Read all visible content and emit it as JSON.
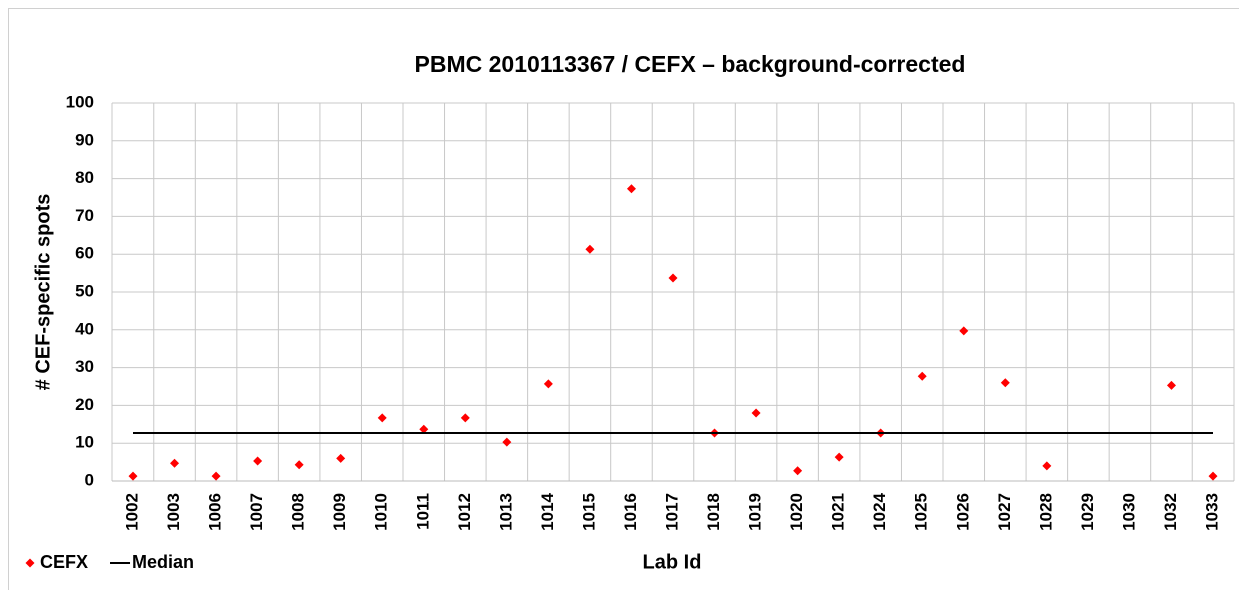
{
  "chart_data": {
    "type": "scatter",
    "title": "PBMC 2010113367 / CEFX – background-corrected",
    "x_label": "Lab Id",
    "y_label": "# CEF-specific spots",
    "categories": [
      "1002",
      "1003",
      "1006",
      "1007",
      "1008",
      "1009",
      "1010",
      "1011",
      "1012",
      "1013",
      "1014",
      "1015",
      "1016",
      "1017",
      "1018",
      "1019",
      "1020",
      "1021",
      "1024",
      "1025",
      "1026",
      "1027",
      "1028",
      "1029",
      "1030",
      "1032",
      "1033"
    ],
    "series": [
      {
        "name": "CEFX",
        "color": "#ff0000",
        "marker": "diamond",
        "values": [
          1.3,
          4.7,
          1.3,
          5.3,
          4.3,
          6,
          16.7,
          13.7,
          16.7,
          10.3,
          25.7,
          61.3,
          77.3,
          53.7,
          12.7,
          18,
          2.7,
          6.3,
          12.7,
          27.7,
          39.7,
          26,
          4,
          null,
          null,
          25.3,
          1.3
        ]
      },
      {
        "name": "Median",
        "color": "#000000",
        "marker": "line",
        "values": [
          12.7,
          12.7,
          12.7,
          12.7,
          12.7,
          12.7,
          12.7,
          12.7,
          12.7,
          12.7,
          12.7,
          12.7,
          12.7,
          12.7,
          12.7,
          12.7,
          12.7,
          12.7,
          12.7,
          12.7,
          12.7,
          12.7,
          12.7,
          12.7,
          12.7,
          12.7,
          12.7
        ]
      }
    ],
    "ylim": [
      0,
      100
    ],
    "yticks": [
      0,
      10,
      20,
      30,
      40,
      50,
      60,
      70,
      80,
      90,
      100
    ],
    "grid": true,
    "legend": "bottom-left"
  }
}
